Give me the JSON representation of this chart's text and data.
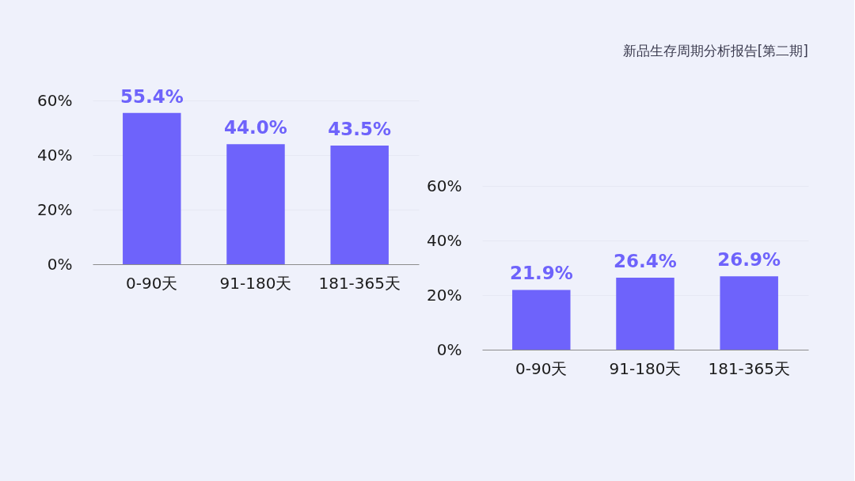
{
  "chart_data": [
    {
      "type": "bar",
      "categories": [
        "0-90天",
        "91-180天",
        "181-365天"
      ],
      "values": [
        55.4,
        44.0,
        43.5
      ],
      "value_labels": [
        "55.4%",
        "44.0%",
        "43.5%"
      ],
      "color": "#6e63fb",
      "ylim": [
        0,
        60
      ],
      "yticks": [
        {
          "value": 0,
          "label": "0%"
        },
        {
          "value": 20,
          "label": "20%"
        },
        {
          "value": 40,
          "label": "40%"
        },
        {
          "value": 60,
          "label": "60%"
        }
      ],
      "grid": "y"
    },
    {
      "type": "bar",
      "title": "新品生存周期分析报告[第二期]",
      "categories": [
        "0-90天",
        "91-180天",
        "181-365天"
      ],
      "values": [
        21.9,
        26.4,
        26.9
      ],
      "value_labels": [
        "21.9%",
        "26.4%",
        "26.9%"
      ],
      "color": "#6e63fb",
      "ylim": [
        0,
        60
      ],
      "yticks": [
        {
          "value": 0,
          "label": "0%"
        },
        {
          "value": 20,
          "label": "20%"
        },
        {
          "value": 40,
          "label": "40%"
        },
        {
          "value": 60,
          "label": "60%"
        }
      ],
      "grid": "y"
    }
  ]
}
